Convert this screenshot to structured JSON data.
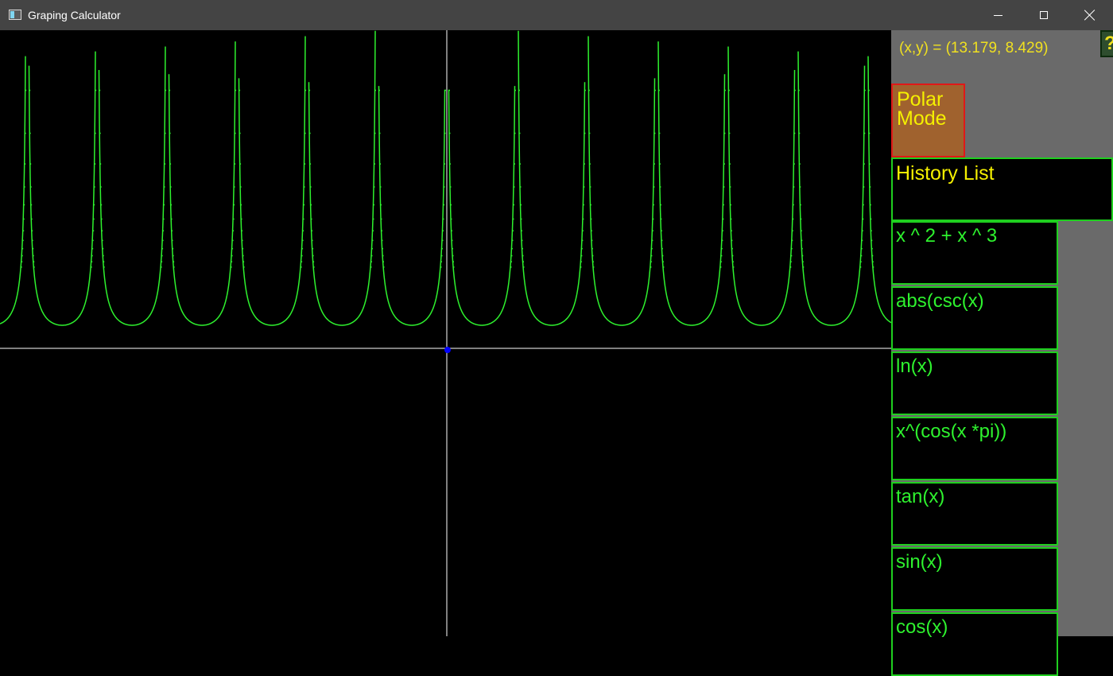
{
  "window": {
    "title": "Graping Calculator",
    "icon": "app-window-icon",
    "buttons": [
      "minimize",
      "maximize",
      "close"
    ]
  },
  "graph": {
    "function_shown": "abs(csc(x))",
    "curve_color": "#2ef22e",
    "axis_color": "#ffffff",
    "origin_marker_color": "#0000ff"
  },
  "panel": {
    "coords_text": "(x,y) = (13.179, 8.429)",
    "help_label": "?",
    "polar_mode_label": "Polar Mode",
    "history_title": "History List",
    "history": [
      "x ^ 2 + x ^ 3",
      "abs(csc(x)",
      "ln(x)",
      "x^(cos(x *pi))",
      "tan(x)",
      "sin(x)",
      "cos(x)"
    ]
  },
  "colors": {
    "title_bar": "#444444",
    "panel_bg": "#6a6a6a",
    "label_yellow": "#f0e020",
    "item_green": "#2ef22e",
    "polar_bg": "#a0622e",
    "polar_border": "#e01818"
  }
}
